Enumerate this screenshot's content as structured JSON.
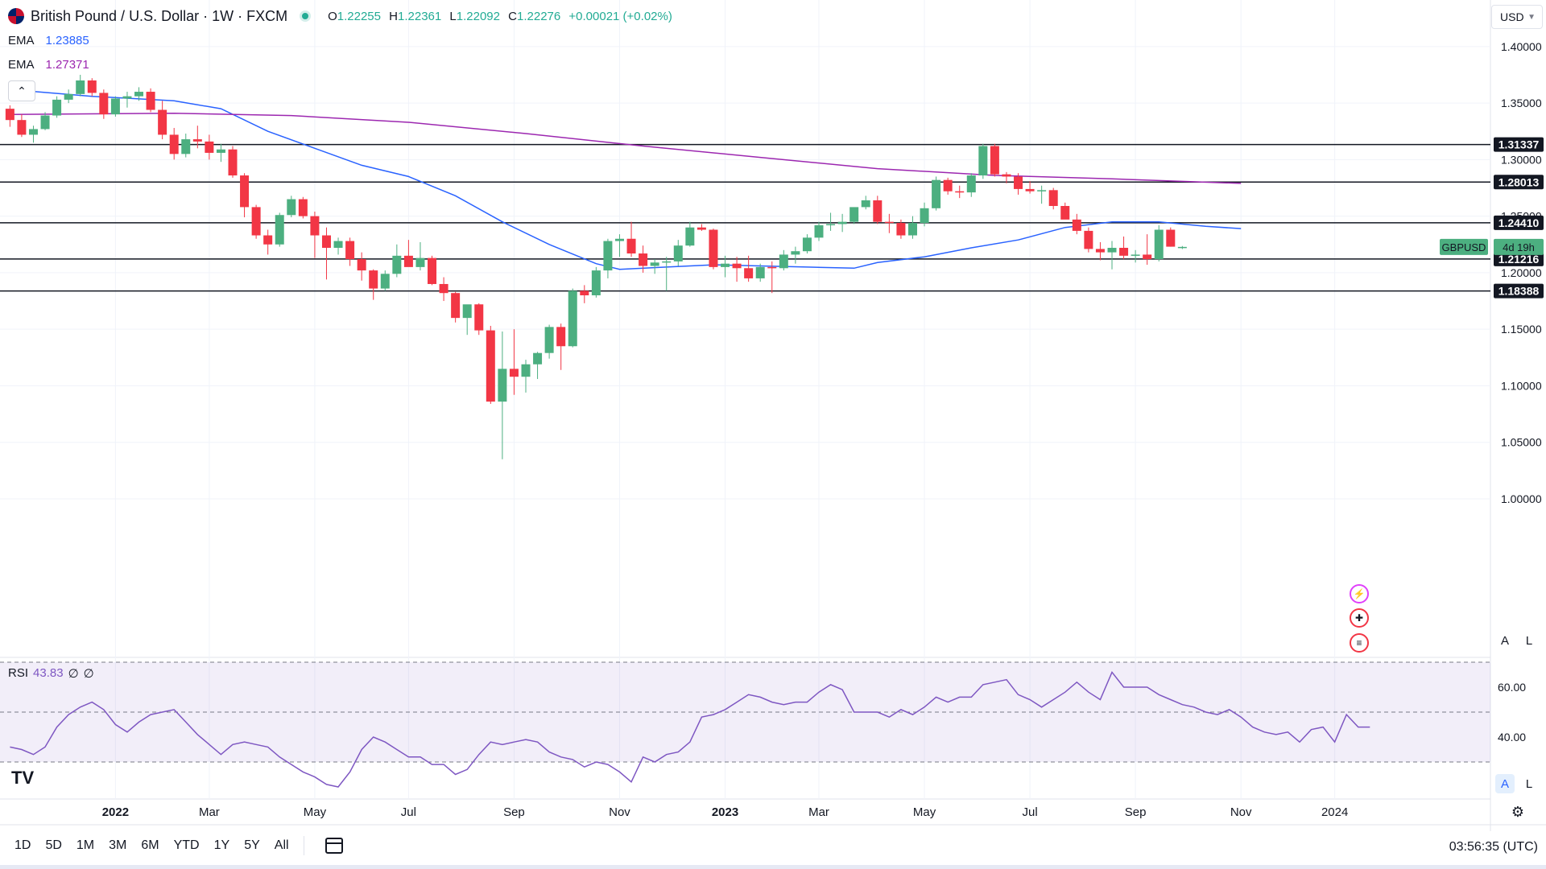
{
  "header": {
    "title": "British Pound / U.S. Dollar · 1W · FXCM",
    "ohlc": {
      "o_label": "O",
      "o": "1.22255",
      "h_label": "H",
      "h": "1.22361",
      "l_label": "L",
      "l": "1.22092",
      "c_label": "C",
      "c": "1.22276",
      "change": "+0.00021 (+0.02%)"
    }
  },
  "indicators": {
    "ema1": {
      "label": "EMA",
      "value": "1.23885",
      "color": "#2962ff"
    },
    "ema2": {
      "label": "EMA",
      "value": "1.27371",
      "color": "#9c27b0"
    },
    "rsi": {
      "label": "RSI",
      "value": "43.83",
      "extra1": "∅",
      "extra2": "∅",
      "color": "#7e57c2"
    }
  },
  "toolbar": {
    "currency": "USD",
    "auto_label": "A",
    "log_label": "L",
    "collapse_icon": "chevron-up-icon"
  },
  "symbol_tag": {
    "name": "GBPUSD",
    "countdown": "4d 19h"
  },
  "bottom_bar": {
    "ranges": [
      "1D",
      "5D",
      "1M",
      "3M",
      "6M",
      "YTD",
      "1Y",
      "5Y",
      "All"
    ],
    "clock": "03:56:35 (UTC)"
  },
  "logo": "TV",
  "colors": {
    "up": "#4caf80",
    "down": "#f23645",
    "grid": "#f0f3fa",
    "text": "#131722"
  },
  "chart_data": [
    {
      "type": "candlestick",
      "title": "British Pound / U.S. Dollar · 1W · FXCM",
      "x_tick_labels": [
        "2022",
        "Mar",
        "May",
        "Jul",
        "Sep",
        "Nov",
        "2023",
        "Mar",
        "May",
        "Jul",
        "Sep",
        "Nov",
        "2024"
      ],
      "x_tick_weeks": [
        5,
        13,
        22,
        30,
        39,
        48,
        57,
        65,
        74,
        83,
        92,
        101,
        109
      ],
      "y_ticks": [
        1.0,
        1.05,
        1.1,
        1.15,
        1.2,
        1.25,
        1.3,
        1.35,
        1.4
      ],
      "ylim": [
        0.975,
        1.415
      ],
      "candles": [
        [
          1.345,
          1.348,
          1.329,
          1.335
        ],
        [
          1.335,
          1.34,
          1.32,
          1.322
        ],
        [
          1.322,
          1.33,
          1.315,
          1.327
        ],
        [
          1.327,
          1.342,
          1.326,
          1.339
        ],
        [
          1.339,
          1.356,
          1.337,
          1.353
        ],
        [
          1.353,
          1.362,
          1.35,
          1.358
        ],
        [
          1.358,
          1.375,
          1.356,
          1.37
        ],
        [
          1.37,
          1.372,
          1.356,
          1.359
        ],
        [
          1.359,
          1.362,
          1.336,
          1.34
        ],
        [
          1.34,
          1.356,
          1.338,
          1.354
        ],
        [
          1.354,
          1.36,
          1.346,
          1.356
        ],
        [
          1.356,
          1.364,
          1.352,
          1.36
        ],
        [
          1.36,
          1.363,
          1.342,
          1.344
        ],
        [
          1.344,
          1.352,
          1.318,
          1.322
        ],
        [
          1.322,
          1.328,
          1.3,
          1.305
        ],
        [
          1.305,
          1.323,
          1.302,
          1.318
        ],
        [
          1.318,
          1.33,
          1.31,
          1.316
        ],
        [
          1.316,
          1.322,
          1.3,
          1.306
        ],
        [
          1.306,
          1.314,
          1.298,
          1.309
        ],
        [
          1.309,
          1.312,
          1.284,
          1.286
        ],
        [
          1.286,
          1.288,
          1.249,
          1.258
        ],
        [
          1.258,
          1.26,
          1.23,
          1.233
        ],
        [
          1.233,
          1.238,
          1.216,
          1.225
        ],
        [
          1.225,
          1.253,
          1.223,
          1.251
        ],
        [
          1.251,
          1.268,
          1.249,
          1.265
        ],
        [
          1.265,
          1.267,
          1.248,
          1.25
        ],
        [
          1.25,
          1.254,
          1.213,
          1.233
        ],
        [
          1.233,
          1.24,
          1.194,
          1.222
        ],
        [
          1.222,
          1.231,
          1.216,
          1.228
        ],
        [
          1.228,
          1.231,
          1.206,
          1.212
        ],
        [
          1.212,
          1.218,
          1.193,
          1.202
        ],
        [
          1.202,
          1.203,
          1.176,
          1.186
        ],
        [
          1.186,
          1.202,
          1.184,
          1.199
        ],
        [
          1.199,
          1.225,
          1.196,
          1.215
        ],
        [
          1.215,
          1.229,
          1.209,
          1.205
        ],
        [
          1.205,
          1.227,
          1.202,
          1.213
        ],
        [
          1.213,
          1.215,
          1.189,
          1.19
        ],
        [
          1.19,
          1.196,
          1.175,
          1.182
        ],
        [
          1.182,
          1.183,
          1.156,
          1.16
        ],
        [
          1.16,
          1.168,
          1.145,
          1.172
        ],
        [
          1.172,
          1.173,
          1.145,
          1.149
        ],
        [
          1.149,
          1.153,
          1.084,
          1.086
        ],
        [
          1.086,
          1.148,
          1.035,
          1.115
        ],
        [
          1.115,
          1.15,
          1.092,
          1.108
        ],
        [
          1.108,
          1.123,
          1.094,
          1.119
        ],
        [
          1.119,
          1.13,
          1.106,
          1.129
        ],
        [
          1.129,
          1.154,
          1.124,
          1.152
        ],
        [
          1.152,
          1.155,
          1.114,
          1.135
        ],
        [
          1.135,
          1.186,
          1.134,
          1.184
        ],
        [
          1.184,
          1.189,
          1.173,
          1.18
        ],
        [
          1.18,
          1.205,
          1.178,
          1.202
        ],
        [
          1.202,
          1.23,
          1.195,
          1.228
        ],
        [
          1.228,
          1.234,
          1.214,
          1.23
        ],
        [
          1.23,
          1.245,
          1.214,
          1.217
        ],
        [
          1.217,
          1.224,
          1.2,
          1.206
        ],
        [
          1.206,
          1.212,
          1.199,
          1.209
        ],
        [
          1.209,
          1.214,
          1.184,
          1.21
        ],
        [
          1.21,
          1.229,
          1.206,
          1.224
        ],
        [
          1.224,
          1.245,
          1.223,
          1.24
        ],
        [
          1.24,
          1.243,
          1.237,
          1.238
        ],
        [
          1.238,
          1.239,
          1.203,
          1.205
        ],
        [
          1.205,
          1.215,
          1.196,
          1.208
        ],
        [
          1.208,
          1.214,
          1.192,
          1.204
        ],
        [
          1.204,
          1.215,
          1.192,
          1.195
        ],
        [
          1.195,
          1.208,
          1.192,
          1.205
        ],
        [
          1.205,
          1.21,
          1.182,
          1.204
        ],
        [
          1.204,
          1.22,
          1.202,
          1.216
        ],
        [
          1.216,
          1.223,
          1.208,
          1.219
        ],
        [
          1.219,
          1.234,
          1.217,
          1.231
        ],
        [
          1.231,
          1.245,
          1.228,
          1.242
        ],
        [
          1.242,
          1.253,
          1.237,
          1.243
        ],
        [
          1.243,
          1.252,
          1.236,
          1.245
        ],
        [
          1.245,
          1.254,
          1.243,
          1.258
        ],
        [
          1.258,
          1.268,
          1.256,
          1.264
        ],
        [
          1.264,
          1.268,
          1.243,
          1.245
        ],
        [
          1.245,
          1.252,
          1.235,
          1.244
        ],
        [
          1.244,
          1.247,
          1.23,
          1.233
        ],
        [
          1.233,
          1.25,
          1.23,
          1.244
        ],
        [
          1.244,
          1.262,
          1.241,
          1.257
        ],
        [
          1.257,
          1.285,
          1.255,
          1.282
        ],
        [
          1.282,
          1.284,
          1.269,
          1.272
        ],
        [
          1.272,
          1.277,
          1.266,
          1.271
        ],
        [
          1.271,
          1.288,
          1.267,
          1.286
        ],
        [
          1.286,
          1.314,
          1.283,
          1.312
        ],
        [
          1.312,
          1.314,
          1.285,
          1.287
        ],
        [
          1.287,
          1.289,
          1.279,
          1.285
        ],
        [
          1.285,
          1.288,
          1.269,
          1.274
        ],
        [
          1.274,
          1.281,
          1.27,
          1.272
        ],
        [
          1.272,
          1.277,
          1.261,
          1.273
        ],
        [
          1.273,
          1.275,
          1.256,
          1.259
        ],
        [
          1.259,
          1.262,
          1.248,
          1.247
        ],
        [
          1.247,
          1.252,
          1.234,
          1.237
        ],
        [
          1.237,
          1.24,
          1.218,
          1.221
        ],
        [
          1.221,
          1.227,
          1.211,
          1.218
        ],
        [
          1.218,
          1.228,
          1.203,
          1.222
        ],
        [
          1.222,
          1.232,
          1.212,
          1.215
        ],
        [
          1.215,
          1.22,
          1.209,
          1.216
        ],
        [
          1.216,
          1.234,
          1.207,
          1.212
        ],
        [
          1.212,
          1.242,
          1.21,
          1.238
        ],
        [
          1.238,
          1.24,
          1.223,
          1.223
        ],
        [
          1.2225,
          1.2236,
          1.2209,
          1.2228
        ]
      ],
      "ema_fast": {
        "name": "EMA",
        "points": [
          [
            -4,
            1.362
          ],
          [
            3,
            1.356
          ],
          [
            10,
            1.352
          ],
          [
            14,
            1.345
          ],
          [
            18,
            1.325
          ],
          [
            22,
            1.31
          ],
          [
            26,
            1.295
          ],
          [
            30,
            1.285
          ],
          [
            34,
            1.268
          ],
          [
            38,
            1.245
          ],
          [
            42,
            1.225
          ],
          [
            46,
            1.208
          ],
          [
            48,
            1.203
          ],
          [
            52,
            1.205
          ],
          [
            56,
            1.207
          ],
          [
            60,
            1.206
          ],
          [
            64,
            1.205
          ],
          [
            68,
            1.204
          ],
          [
            70,
            1.209
          ],
          [
            74,
            1.214
          ],
          [
            78,
            1.222
          ],
          [
            82,
            1.229
          ],
          [
            86,
            1.24
          ],
          [
            90,
            1.245
          ],
          [
            94,
            1.245
          ],
          [
            98,
            1.241
          ],
          [
            101,
            1.239
          ]
        ]
      },
      "ema_slow": {
        "name": "EMA",
        "points": [
          [
            -4,
            1.34
          ],
          [
            10,
            1.341
          ],
          [
            20,
            1.339
          ],
          [
            30,
            1.333
          ],
          [
            40,
            1.323
          ],
          [
            50,
            1.312
          ],
          [
            60,
            1.302
          ],
          [
            70,
            1.292
          ],
          [
            80,
            1.286
          ],
          [
            90,
            1.283
          ],
          [
            101,
            1.279
          ]
        ]
      },
      "horizontal_levels": [
        "1.31337",
        "1.28013",
        "1.24410",
        "1.21216",
        "1.18388"
      ]
    },
    {
      "type": "line",
      "title": "RSI",
      "ylim": [
        23,
        75
      ],
      "y_ticks": [
        40.0,
        60.0
      ],
      "band": [
        30,
        70
      ],
      "midline": 50,
      "values": [
        36,
        35,
        33,
        36,
        44,
        49,
        52,
        54,
        51,
        45,
        42,
        46,
        49,
        50,
        51,
        46,
        41,
        37,
        33,
        37,
        38,
        37,
        36,
        32,
        29,
        26,
        24,
        21,
        20,
        26,
        35,
        40,
        38,
        35,
        32,
        32,
        29,
        29,
        25,
        27,
        33,
        38,
        37,
        38,
        39,
        38,
        34,
        32,
        31,
        28,
        30,
        29,
        26,
        22,
        32,
        30,
        33,
        34,
        38,
        48,
        49,
        51,
        54,
        57,
        56,
        54,
        53,
        54,
        54,
        58,
        61,
        59,
        50,
        50,
        50,
        48,
        51,
        49,
        52,
        56,
        54,
        56,
        56,
        61,
        62,
        63,
        57,
        55,
        52,
        55,
        58,
        62,
        58,
        55,
        66,
        60,
        60,
        60,
        57,
        55,
        53,
        52,
        50,
        49,
        51,
        48,
        44,
        42,
        41,
        42,
        38,
        43,
        44,
        38,
        49,
        44,
        44
      ]
    }
  ]
}
